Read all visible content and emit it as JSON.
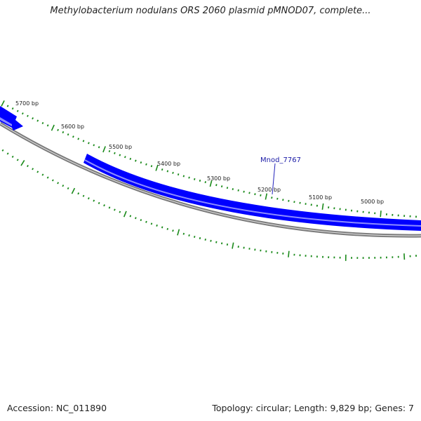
{
  "title": "Methylobacterium nodulans ORS 2060 plasmid pMNOD07, complete...",
  "footer": {
    "accession": "Accession: NC_011890",
    "stats": "Topology: circular; Length: 9,829 bp; Genes: 7"
  },
  "scale_labels": [
    "5700 bp",
    "5600 bp",
    "5500 bp",
    "5400 bp",
    "5300 bp",
    "5200 bp",
    "5100 bp",
    "5000 bp"
  ],
  "gene_label": "Mnod_7767",
  "colors": {
    "gene": "#0000ff",
    "gene_light": "#8888ff",
    "backbone": "#7a7a7a",
    "ticks": "#1a8a1a",
    "label_line": "#2222bb"
  }
}
